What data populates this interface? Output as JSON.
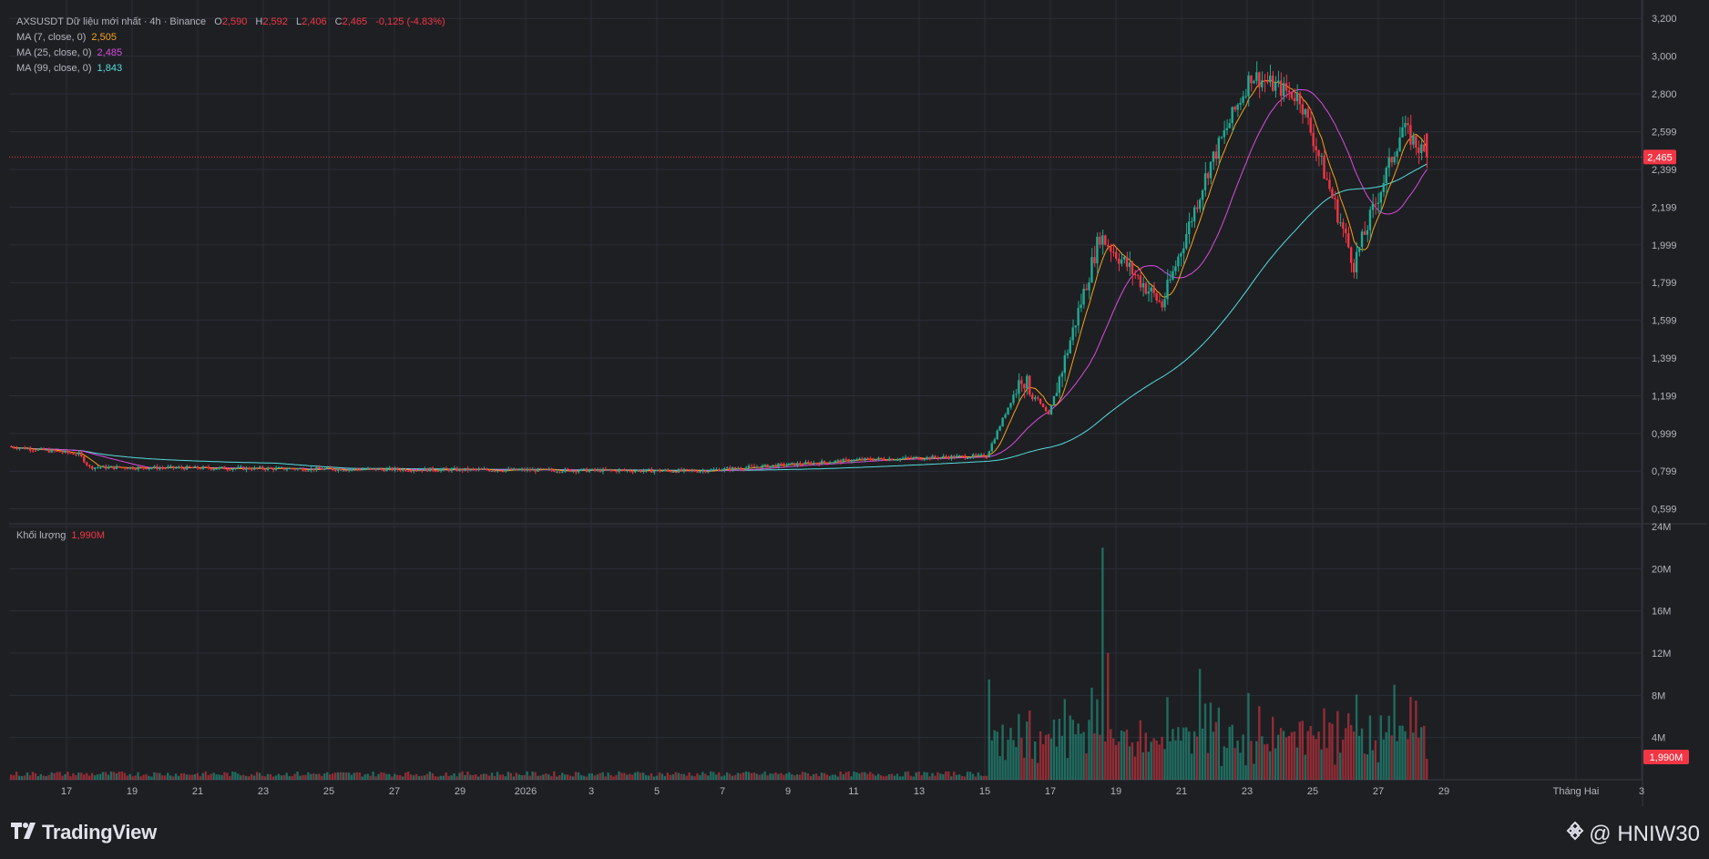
{
  "header": {
    "symbol": "AXSUSDT Dữ liệu mới nhất · 4h · Binance",
    "ohlc": [
      {
        "k": "O",
        "v": "2,590"
      },
      {
        "k": "H",
        "v": "2,592"
      },
      {
        "k": "L",
        "v": "2,406"
      },
      {
        "k": "C",
        "v": "2,465"
      }
    ],
    "change": "-0,125 (-4.83%)",
    "ma": [
      {
        "label": "MA (7, close, 0)",
        "value": "2,505",
        "color": "#f7a21b"
      },
      {
        "label": "MA (25, close, 0)",
        "value": "2,485",
        "color": "#d84ce0"
      },
      {
        "label": "MA (99, close, 0)",
        "value": "1,843",
        "color": "#55dde0"
      }
    ],
    "volume_label": "Khối lượng",
    "volume_value": "1,990M"
  },
  "colors": {
    "up": "#22ab94",
    "down": "#f23645",
    "ma7": "#f7a21b",
    "ma25": "#d84ce0",
    "ma99": "#55dde0",
    "background": "#1e1f22",
    "grid": "#2a2e39"
  },
  "chart_data": {
    "type": "candlestick",
    "symbol": "AXSUSDT",
    "interval": "4h",
    "exchange": "Binance",
    "price_axis": {
      "ticks": [
        "3,200",
        "3,000",
        "2,800",
        "2,599",
        "2,399",
        "2,199",
        "1,999",
        "1,799",
        "1,599",
        "1,399",
        "1,199",
        "0,999",
        "0,799",
        "0,599"
      ],
      "range": [
        0.52,
        3.23
      ]
    },
    "volume_axis": {
      "ticks": [
        "24M",
        "20M",
        "16M",
        "12M",
        "8M",
        "4M"
      ],
      "range": [
        0,
        24
      ]
    },
    "x_axis": {
      "ticks": [
        "17",
        "19",
        "21",
        "23",
        "25",
        "27",
        "29",
        "2026",
        "3",
        "5",
        "7",
        "9",
        "11",
        "13",
        "15",
        "17",
        "19",
        "21",
        "23",
        "25",
        "27",
        "29",
        "Tháng Hai",
        "3"
      ]
    },
    "last_price_label": "2,465",
    "last_price": 2.465,
    "last_volume_label": "1,990M",
    "last_volume_m": 1.99,
    "key_points": [
      {
        "date": "Dec 17",
        "close": 0.93
      },
      {
        "date": "Dec 19",
        "close": 0.82
      },
      {
        "date": "Dec 31",
        "close": 0.8
      },
      {
        "date": "Jan 13",
        "close": 0.88
      },
      {
        "date": "Jan 14",
        "close": 1.3
      },
      {
        "date": "Jan 16",
        "close": 1.09
      },
      {
        "date": "Jan 17",
        "close": 2.05
      },
      {
        "date": "Jan 20",
        "close": 1.68
      },
      {
        "date": "Jan 21",
        "close": 2.4
      },
      {
        "date": "Jan 23",
        "close": 2.9
      },
      {
        "date": "Jan 24",
        "close": 2.78
      },
      {
        "date": "Jan 26",
        "close": 1.9
      },
      {
        "date": "Jan 27",
        "close": 2.62
      },
      {
        "date": "Jan 27",
        "close": 2.465
      }
    ],
    "volume_key_points_m": [
      {
        "date": "Jan 13",
        "volume": 9.5
      },
      {
        "date": "Jan 17",
        "volume": 22
      },
      {
        "date": "Jan 17",
        "volume": 12
      },
      {
        "date": "Jan 20",
        "volume": 10.5
      },
      {
        "date": "Jan 26",
        "volume": 9
      },
      {
        "date": "Jan 27",
        "volume": 7.5
      }
    ]
  },
  "footer": {
    "brand": "TradingView",
    "watermark": "@ HNIW30"
  }
}
